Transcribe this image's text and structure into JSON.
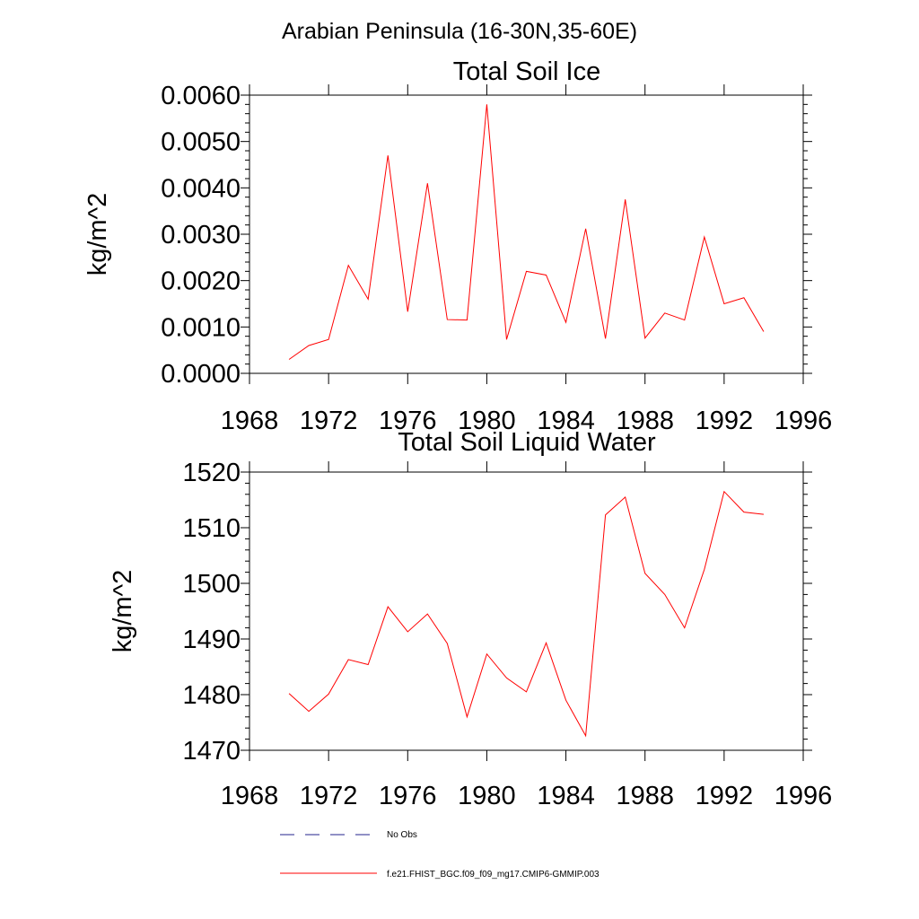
{
  "figure_title": "Arabian Peninsula (16-30N,35-60E)",
  "chart_data": [
    {
      "type": "line",
      "title": "Total Soil Ice",
      "xlabel": "",
      "ylabel": "kg/m^2",
      "xlim": [
        1968,
        1996
      ],
      "ylim": [
        0.0,
        0.006
      ],
      "x_ticks": [
        "1968",
        "1972",
        "1976",
        "1980",
        "1984",
        "1988",
        "1992",
        "1996"
      ],
      "y_ticks": [
        "0.0000",
        "0.0010",
        "0.0020",
        "0.0030",
        "0.0040",
        "0.0050",
        "0.0060"
      ],
      "series": [
        {
          "name": "f.e21.FHIST_BGC.f09_f09_mg17.CMIP6-GMMIP.003",
          "color": "#ff0000",
          "x": [
            1970,
            1971,
            1972,
            1973,
            1974,
            1975,
            1976,
            1977,
            1978,
            1979,
            1980,
            1981,
            1982,
            1983,
            1984,
            1985,
            1986,
            1987,
            1988,
            1989,
            1990,
            1991,
            1992,
            1993,
            1994
          ],
          "values": [
            0.0003,
            0.0006,
            0.00073,
            0.00233,
            0.0016,
            0.0047,
            0.00133,
            0.0041,
            0.00116,
            0.00115,
            0.0058,
            0.00073,
            0.0022,
            0.00212,
            0.0011,
            0.00312,
            0.00075,
            0.00375,
            0.00076,
            0.0013,
            0.00115,
            0.00294,
            0.0015,
            0.00163,
            0.0009
          ]
        }
      ]
    },
    {
      "type": "line",
      "title": "Total Soil Liquid Water",
      "xlabel": "",
      "ylabel": "kg/m^2",
      "xlim": [
        1968,
        1996
      ],
      "ylim": [
        1470,
        1520
      ],
      "x_ticks": [
        "1968",
        "1972",
        "1976",
        "1980",
        "1984",
        "1988",
        "1992",
        "1996"
      ],
      "y_ticks": [
        "1470",
        "1480",
        "1490",
        "1500",
        "1510",
        "1520"
      ],
      "series": [
        {
          "name": "f.e21.FHIST_BGC.f09_f09_mg17.CMIP6-GMMIP.003",
          "color": "#ff0000",
          "x": [
            1970,
            1971,
            1972,
            1973,
            1974,
            1975,
            1976,
            1977,
            1978,
            1979,
            1980,
            1981,
            1982,
            1983,
            1984,
            1985,
            1986,
            1987,
            1988,
            1989,
            1990,
            1991,
            1992,
            1993,
            1994
          ],
          "values": [
            1480.2,
            1477.0,
            1480.1,
            1486.3,
            1485.4,
            1495.8,
            1491.3,
            1494.5,
            1489.2,
            1476.0,
            1487.3,
            1483.0,
            1480.5,
            1489.3,
            1479.0,
            1472.6,
            1512.3,
            1515.5,
            1501.8,
            1498.0,
            1492.0,
            1502.5,
            1516.5,
            1512.8,
            1512.4
          ]
        }
      ]
    }
  ],
  "legend": [
    {
      "label": "No Obs",
      "color": "#23238e",
      "style": "dashed"
    },
    {
      "label": "f.e21.FHIST_BGC.f09_f09_mg17.CMIP6-GMMIP.003",
      "color": "#ff0000",
      "style": "solid"
    }
  ]
}
